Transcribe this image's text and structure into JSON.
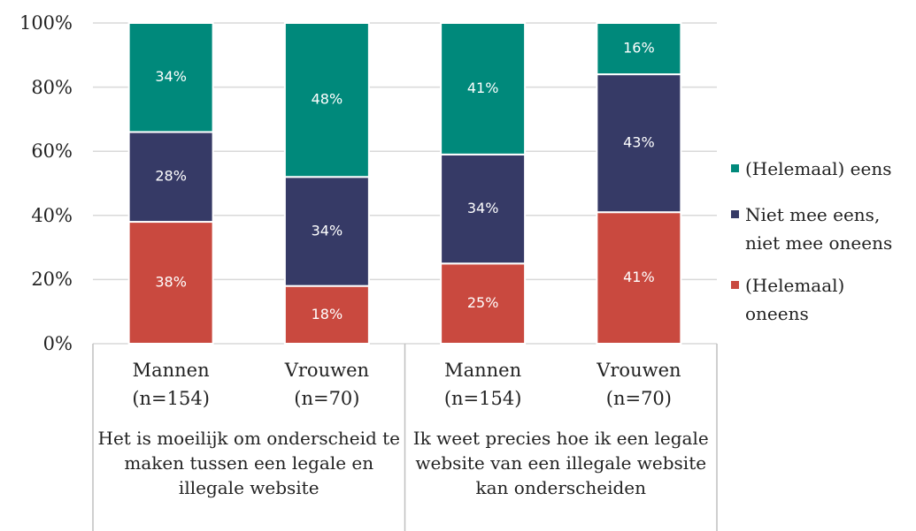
{
  "chart_data": {
    "type": "stacked_bar",
    "categories": [
      "Mannen (n=154)",
      "Vrouwen (n=70)",
      "Mannen (n=154)",
      "Vrouwen (n=70)"
    ],
    "groups": [
      "Het is moeilijk om onderscheid te maken tussen een legale en illegale website",
      "Ik weet precies hoe ik een legale website van een illegale website kan onderscheiden"
    ],
    "series": [
      {
        "name": "(Helemaal) oneens",
        "color": "#c9493f",
        "values": [
          38,
          18,
          25,
          41
        ],
        "value_labels": [
          "38%",
          "18%",
          "25%",
          "41%"
        ]
      },
      {
        "name": "Niet mee eens, niet mee oneens",
        "color": "#363a66",
        "values": [
          28,
          34,
          34,
          43
        ],
        "value_labels": [
          "28%",
          "34%",
          "34%",
          "43%"
        ]
      },
      {
        "name": "(Helemaal) eens",
        "color": "#00897b",
        "values": [
          34,
          48,
          41,
          16
        ],
        "value_labels": [
          "34%",
          "48%",
          "41%",
          "16%"
        ]
      }
    ],
    "ylim": [
      0,
      100
    ],
    "yticks": [
      {
        "value": 0,
        "label": "0%"
      },
      {
        "value": 20,
        "label": "20%"
      },
      {
        "value": 40,
        "label": "40%"
      },
      {
        "value": 60,
        "label": "60%"
      },
      {
        "value": 80,
        "label": "80%"
      },
      {
        "value": 100,
        "label": "100%"
      }
    ],
    "grid": true,
    "legend": "right"
  }
}
